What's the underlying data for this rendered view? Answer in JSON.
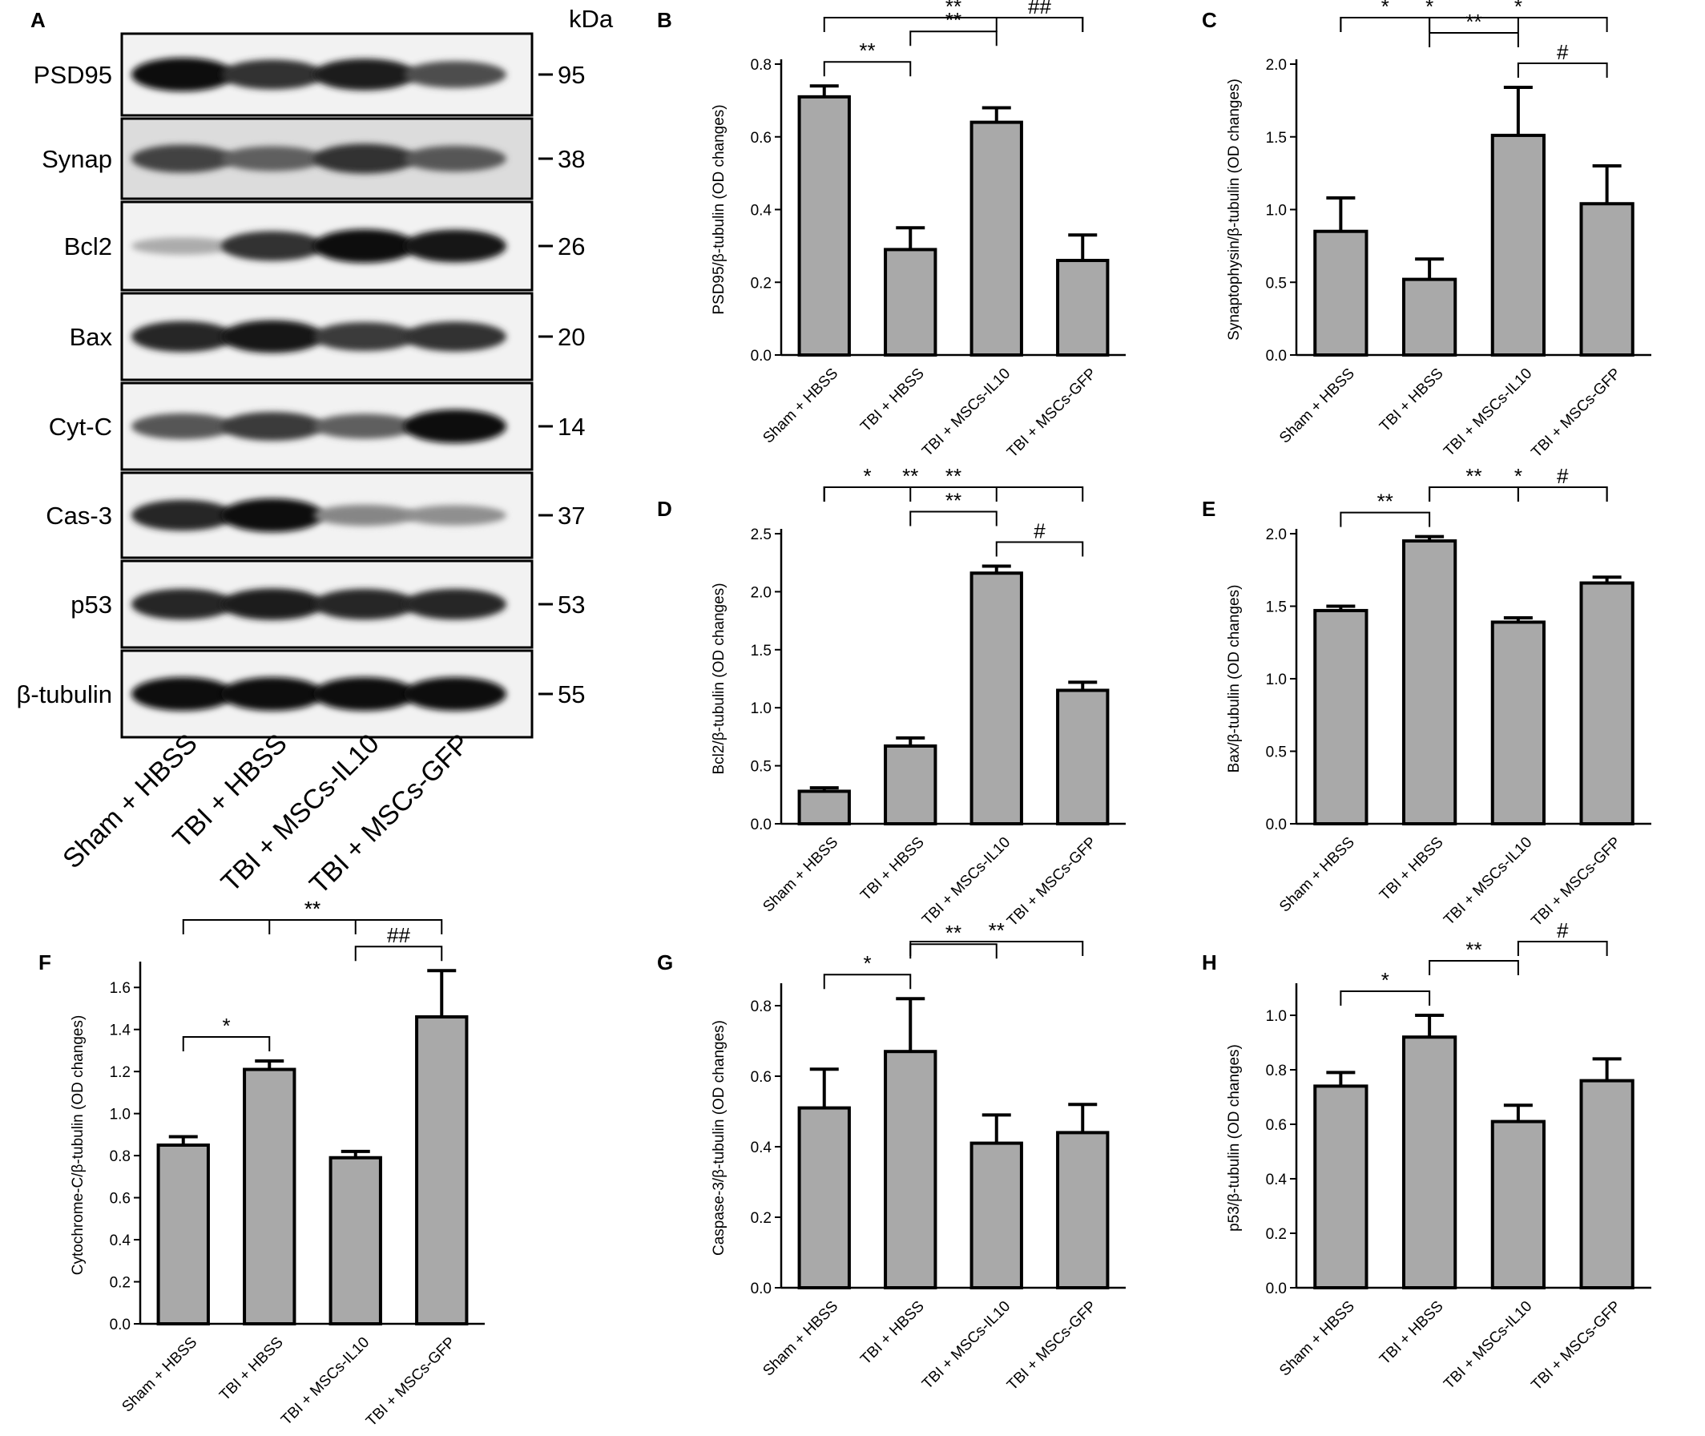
{
  "western_blot": {
    "panel_label": "A",
    "kda_header": "kDa",
    "lanes": [
      "Sham + HBSS",
      "TBI + HBSS",
      "TBI + MSCs-IL10",
      "TBI + MSCs-GFP"
    ],
    "rows": [
      {
        "protein": "PSD95",
        "kda": "95",
        "intensity": [
          1.0,
          0.8,
          0.9,
          0.65
        ]
      },
      {
        "protein": "Synap",
        "kda": "38",
        "intensity": [
          0.7,
          0.55,
          0.8,
          0.6
        ]
      },
      {
        "protein": "Bcl2",
        "kda": "26",
        "intensity": [
          0.15,
          0.8,
          1.0,
          0.95
        ]
      },
      {
        "protein": "Bax",
        "kda": "20",
        "intensity": [
          0.85,
          0.95,
          0.75,
          0.8
        ]
      },
      {
        "protein": "Cyt-C",
        "kda": "14",
        "intensity": [
          0.6,
          0.75,
          0.55,
          1.0
        ]
      },
      {
        "protein": "Cas-3",
        "kda": "37",
        "intensity": [
          0.85,
          1.0,
          0.35,
          0.3
        ]
      },
      {
        "protein": "p53",
        "kda": "53",
        "intensity": [
          0.85,
          0.9,
          0.85,
          0.85
        ]
      },
      {
        "protein": "β-tubulin",
        "kda": "55",
        "intensity": [
          1.0,
          1.0,
          1.0,
          1.0
        ]
      }
    ]
  },
  "chart_data": [
    {
      "panel": "B",
      "type": "bar",
      "ylabel": "PSD95/β-tubulin (OD changes)",
      "categories": [
        "Sham + HBSS",
        "TBI + HBSS",
        "TBI + MSCs-IL10",
        "TBI + MSCs-GFP"
      ],
      "values": [
        0.71,
        0.29,
        0.64,
        0.26
      ],
      "errors": [
        0.03,
        0.06,
        0.04,
        0.07
      ],
      "ylim": [
        0,
        0.8
      ],
      "yticks": [
        "0.0",
        "0.2",
        "0.4",
        "0.6",
        "0.8"
      ],
      "significance": [
        {
          "from": 0,
          "to": 3,
          "label": "**"
        },
        {
          "from": 0,
          "to": 1,
          "label": "**"
        },
        {
          "from": 1,
          "to": 2,
          "label": "**"
        },
        {
          "from": 2,
          "to": 3,
          "label": "##"
        }
      ]
    },
    {
      "panel": "C",
      "type": "bar",
      "ylabel": "Synaptophysin/β-tubulin (OD changes)",
      "categories": [
        "Sham + HBSS",
        "TBI + HBSS",
        "TBI + MSCs-IL10",
        "TBI + MSCs-GFP"
      ],
      "values": [
        0.85,
        0.52,
        1.51,
        1.04
      ],
      "errors": [
        0.23,
        0.14,
        0.33,
        0.26
      ],
      "ylim": [
        0,
        2.0
      ],
      "yticks": [
        "0.0",
        "0.5",
        "1.0",
        "1.5",
        "2.0"
      ],
      "significance": [
        {
          "from": 1,
          "to": 3,
          "label": "*"
        },
        {
          "from": 0,
          "to": 2,
          "label": "*"
        },
        {
          "from": 2,
          "to": 3,
          "label": "#"
        },
        {
          "from": 1,
          "to": 2,
          "label": "**"
        },
        {
          "from": 0,
          "to": 1,
          "label": "*"
        }
      ]
    },
    {
      "panel": "D",
      "type": "bar",
      "ylabel": "Bcl2/β-tubulin (OD changes)",
      "categories": [
        "Sham + HBSS",
        "TBI + HBSS",
        "TBI + MSCs-IL10",
        "TBI + MSCs-GFP"
      ],
      "values": [
        0.28,
        0.67,
        2.16,
        1.15
      ],
      "errors": [
        0.03,
        0.07,
        0.06,
        0.07
      ],
      "ylim": [
        0,
        2.5
      ],
      "yticks": [
        "0.0",
        "0.5",
        "1.0",
        "1.5",
        "2.0",
        "2.5"
      ],
      "significance": [
        {
          "from": 0,
          "to": 3,
          "label": "**"
        },
        {
          "from": 0,
          "to": 2,
          "label": "**"
        },
        {
          "from": 2,
          "to": 3,
          "label": "#"
        },
        {
          "from": 1,
          "to": 2,
          "label": "**"
        },
        {
          "from": 0,
          "to": 1,
          "label": "*"
        }
      ]
    },
    {
      "panel": "E",
      "type": "bar",
      "ylabel": "Bax/β-tubulin (OD changes)",
      "categories": [
        "Sham + HBSS",
        "TBI + HBSS",
        "TBI + MSCs-IL10",
        "TBI + MSCs-GFP"
      ],
      "values": [
        1.47,
        1.95,
        1.39,
        1.66
      ],
      "errors": [
        0.03,
        0.03,
        0.03,
        0.04
      ],
      "ylim": [
        0,
        2.0
      ],
      "yticks": [
        "0.0",
        "0.5",
        "1.0",
        "1.5",
        "2.0"
      ],
      "significance": [
        {
          "from": 1,
          "to": 3,
          "label": "*"
        },
        {
          "from": 0,
          "to": 1,
          "label": "**"
        },
        {
          "from": 1,
          "to": 2,
          "label": "**"
        },
        {
          "from": 2,
          "to": 3,
          "label": "#"
        }
      ]
    },
    {
      "panel": "F",
      "type": "bar",
      "ylabel": "Cytochrome-C/β-tubulin (OD changes)",
      "categories": [
        "Sham + HBSS",
        "TBI + HBSS",
        "TBI + MSCs-IL10",
        "TBI + MSCs-GFP"
      ],
      "values": [
        0.85,
        1.21,
        0.79,
        1.46
      ],
      "errors": [
        0.04,
        0.04,
        0.03,
        0.22
      ],
      "ylim": [
        0,
        1.7
      ],
      "yticks": [
        "0.0",
        "0.2",
        "0.4",
        "0.6",
        "0.8",
        "1.0",
        "1.2",
        "1.4",
        "1.6"
      ],
      "significance": [
        {
          "from": 0,
          "to": 3,
          "label": "**"
        },
        {
          "from": 2,
          "to": 3,
          "label": "##"
        },
        {
          "from": 0,
          "to": 1,
          "label": "*"
        },
        {
          "from": 1,
          "to": 2,
          "label": "**"
        }
      ]
    },
    {
      "panel": "G",
      "type": "bar",
      "ylabel": "Caspase-3/β-tubulin (OD changes)",
      "categories": [
        "Sham + HBSS",
        "TBI + HBSS",
        "TBI + MSCs-IL10",
        "TBI + MSCs-GFP"
      ],
      "values": [
        0.51,
        0.67,
        0.41,
        0.44
      ],
      "errors": [
        0.11,
        0.15,
        0.08,
        0.08
      ],
      "ylim": [
        0,
        0.85
      ],
      "yticks": [
        "0.0",
        "0.2",
        "0.4",
        "0.6",
        "0.8"
      ],
      "significance": [
        {
          "from": 0,
          "to": 1,
          "label": "*"
        },
        {
          "from": 1,
          "to": 3,
          "label": "**"
        },
        {
          "from": 1,
          "to": 2,
          "label": "**"
        }
      ]
    },
    {
      "panel": "H",
      "type": "bar",
      "ylabel": "p53/β-tubulin (OD changes)",
      "categories": [
        "Sham + HBSS",
        "TBI + HBSS",
        "TBI + MSCs-IL10",
        "TBI + MSCs-GFP"
      ],
      "values": [
        0.74,
        0.92,
        0.61,
        0.76
      ],
      "errors": [
        0.05,
        0.08,
        0.06,
        0.08
      ],
      "ylim": [
        0,
        1.1
      ],
      "yticks": [
        "0.0",
        "0.2",
        "0.4",
        "0.6",
        "0.8",
        "1.0"
      ],
      "significance": [
        {
          "from": 0,
          "to": 1,
          "label": "*"
        },
        {
          "from": 1,
          "to": 2,
          "label": "**"
        },
        {
          "from": 2,
          "to": 3,
          "label": "#"
        }
      ]
    }
  ],
  "colors": {
    "bar_fill": "#a9a9a9",
    "ink": "#000000"
  }
}
